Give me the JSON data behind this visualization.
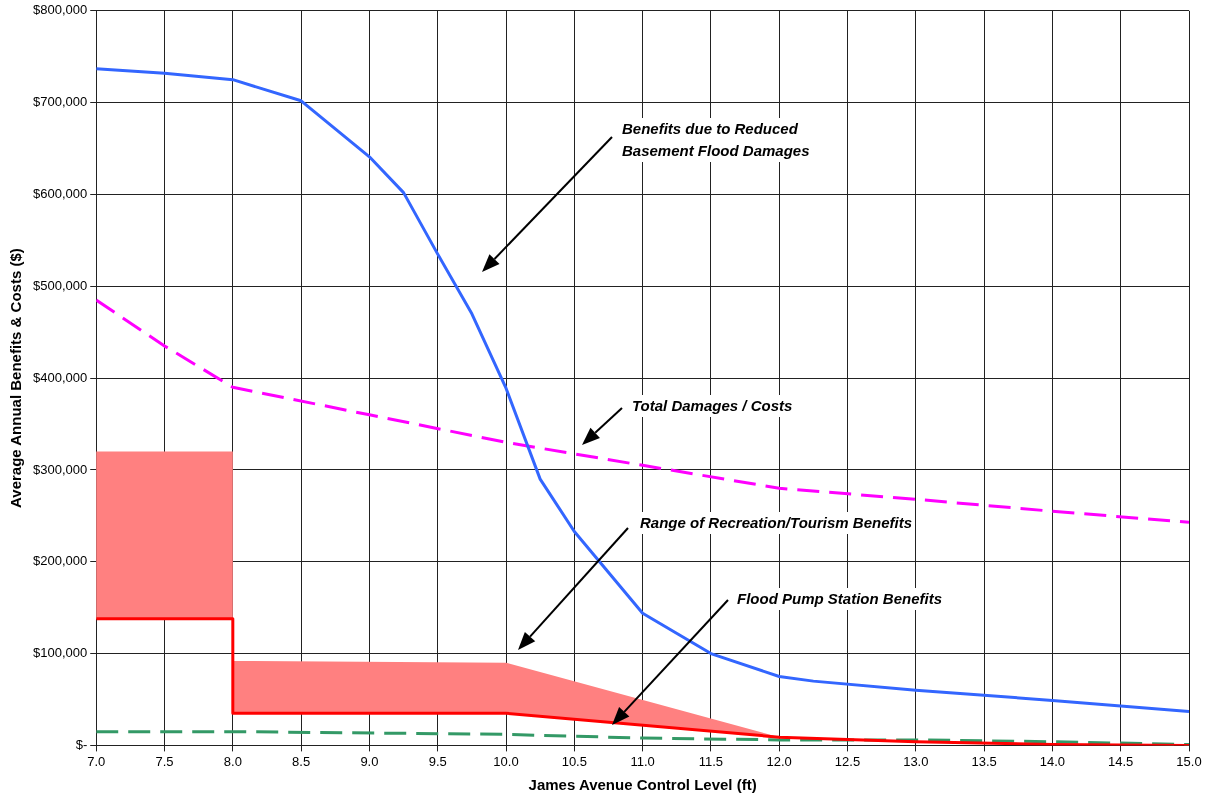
{
  "chart_data": {
    "type": "line",
    "xlabel": "James Avenue Control Level (ft)",
    "ylabel": "Average Annual Benefits & Costs ($)",
    "xlim": [
      7,
      15
    ],
    "xticks": [
      {
        "value": 7,
        "label": "7.0"
      },
      {
        "value": 7.5,
        "label": "7.5"
      },
      {
        "value": 8,
        "label": "8.0"
      },
      {
        "value": 8.5,
        "label": "8.5"
      },
      {
        "value": 9,
        "label": "9.0"
      },
      {
        "value": 9.5,
        "label": "9.5"
      },
      {
        "value": 10,
        "label": "10.0"
      },
      {
        "value": 10.5,
        "label": "10.5"
      },
      {
        "value": 11,
        "label": "11.0"
      },
      {
        "value": 11.5,
        "label": "11.5"
      },
      {
        "value": 12,
        "label": "12.0"
      },
      {
        "value": 12.5,
        "label": "12.5"
      },
      {
        "value": 13,
        "label": "13.0"
      },
      {
        "value": 13.5,
        "label": "13.5"
      },
      {
        "value": 14,
        "label": "14.0"
      },
      {
        "value": 14.5,
        "label": "14.5"
      },
      {
        "value": 15,
        "label": "15.0"
      }
    ],
    "ylim": [
      0,
      800000
    ],
    "yticks": [
      {
        "value": 0,
        "label": "$-"
      },
      {
        "value": 100000,
        "label": "$100,000"
      },
      {
        "value": 200000,
        "label": "$200,000"
      },
      {
        "value": 300000,
        "label": "$300,000"
      },
      {
        "value": 400000,
        "label": "$400,000"
      },
      {
        "value": 500000,
        "label": "$500,000"
      },
      {
        "value": 600000,
        "label": "$600,000"
      },
      {
        "value": 700000,
        "label": "$700,000"
      },
      {
        "value": 800000,
        "label": "$800,000"
      }
    ],
    "grid": true,
    "legend": false,
    "marker": "none",
    "series": [
      {
        "color": "#3366ff",
        "line_style": "solid",
        "x": [
          7,
          7.5,
          8,
          8.5,
          9,
          9.25,
          9.5,
          9.75,
          10,
          10.25,
          10.5,
          11,
          11.5,
          12,
          12.25,
          13,
          14,
          15
        ],
        "values": [
          737000,
          732000,
          725000,
          702000,
          641000,
          602000,
          535000,
          470000,
          389000,
          290000,
          233000,
          144000,
          100000,
          75000,
          70000,
          60000,
          49000,
          37000
        ]
      },
      {
        "color": "#ff00ff",
        "line_style": "dashed",
        "x": [
          7,
          7.5,
          8,
          9,
          10,
          11,
          12,
          13,
          14,
          15
        ],
        "values": [
          485000,
          435000,
          390000,
          360000,
          330000,
          305000,
          280000,
          268000,
          255000,
          243000
        ]
      },
      {
        "color": "#ff0000",
        "line_style": "solid",
        "x": [
          7,
          8,
          8,
          10,
          12,
          13,
          14,
          15
        ],
        "values": [
          138000,
          138000,
          35000,
          35000,
          9000,
          4000,
          1000,
          0
        ],
        "lower": [
          138000,
          138000,
          35000,
          35000,
          9000,
          null,
          null,
          null
        ],
        "upper": [
          320000,
          320000,
          92000,
          90000,
          9000,
          null,
          null,
          null
        ]
      },
      {
        "color": "#339966",
        "line_style": "dashed",
        "x": [
          7,
          8,
          10,
          11,
          12,
          13,
          14,
          15
        ],
        "values": [
          15000,
          15000,
          12000,
          8000,
          6000,
          6000,
          4000,
          1000
        ]
      }
    ],
    "annotations": [
      "Benefits due to Reduced\nBasement Flood Damages",
      "Total Damages / Costs",
      "Range of Recreation/Tourism Benefits",
      "Flood Pump Station Benefits"
    ]
  }
}
